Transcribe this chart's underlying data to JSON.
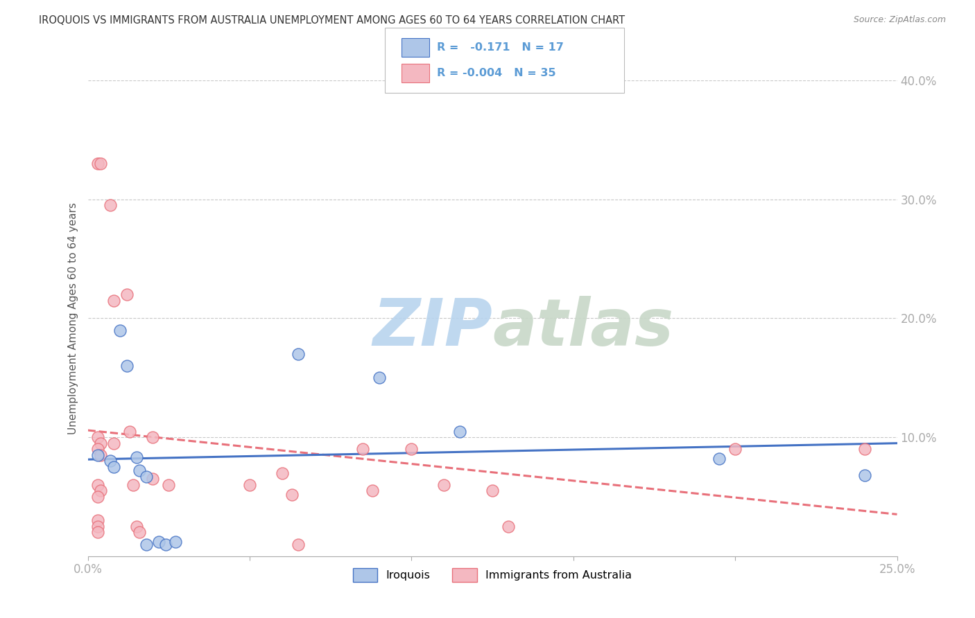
{
  "title": "IROQUOIS VS IMMIGRANTS FROM AUSTRALIA UNEMPLOYMENT AMONG AGES 60 TO 64 YEARS CORRELATION CHART",
  "source": "Source: ZipAtlas.com",
  "ylabel": "Unemployment Among Ages 60 to 64 years",
  "xlim": [
    0.0,
    0.25
  ],
  "ylim": [
    0.0,
    0.4
  ],
  "xticks": [
    0.0,
    0.05,
    0.1,
    0.15,
    0.2,
    0.25
  ],
  "yticks": [
    0.0,
    0.1,
    0.2,
    0.3,
    0.4
  ],
  "xtick_labels": [
    "0.0%",
    "",
    "",
    "",
    "",
    "25.0%"
  ],
  "ytick_labels": [
    "",
    "10.0%",
    "20.0%",
    "30.0%",
    "40.0%"
  ],
  "background_color": "#ffffff",
  "grid_color": "#c8c8c8",
  "axis_color": "#5b9bd5",
  "iroquois_color": "#aec6e8",
  "immigrants_color": "#f4b8c1",
  "iroquois_line_color": "#4472c4",
  "immigrants_line_color": "#e8707a",
  "R_iroquois": -0.171,
  "N_iroquois": 17,
  "R_immigrants": -0.004,
  "N_immigrants": 35,
  "iroquois_points": [
    [
      0.003,
      0.085
    ],
    [
      0.007,
      0.08
    ],
    [
      0.008,
      0.075
    ],
    [
      0.01,
      0.19
    ],
    [
      0.012,
      0.16
    ],
    [
      0.015,
      0.083
    ],
    [
      0.016,
      0.072
    ],
    [
      0.018,
      0.067
    ],
    [
      0.018,
      0.01
    ],
    [
      0.022,
      0.012
    ],
    [
      0.024,
      0.01
    ],
    [
      0.027,
      0.012
    ],
    [
      0.065,
      0.17
    ],
    [
      0.09,
      0.15
    ],
    [
      0.115,
      0.105
    ],
    [
      0.195,
      0.082
    ],
    [
      0.24,
      0.068
    ]
  ],
  "immigrants_points": [
    [
      0.003,
      0.33
    ],
    [
      0.004,
      0.33
    ],
    [
      0.003,
      0.1
    ],
    [
      0.004,
      0.095
    ],
    [
      0.003,
      0.09
    ],
    [
      0.004,
      0.085
    ],
    [
      0.003,
      0.06
    ],
    [
      0.004,
      0.055
    ],
    [
      0.003,
      0.05
    ],
    [
      0.003,
      0.03
    ],
    [
      0.003,
      0.025
    ],
    [
      0.003,
      0.02
    ],
    [
      0.007,
      0.295
    ],
    [
      0.008,
      0.215
    ],
    [
      0.008,
      0.095
    ],
    [
      0.012,
      0.22
    ],
    [
      0.013,
      0.105
    ],
    [
      0.014,
      0.06
    ],
    [
      0.015,
      0.025
    ],
    [
      0.016,
      0.02
    ],
    [
      0.02,
      0.1
    ],
    [
      0.02,
      0.065
    ],
    [
      0.025,
      0.06
    ],
    [
      0.05,
      0.06
    ],
    [
      0.06,
      0.07
    ],
    [
      0.063,
      0.052
    ],
    [
      0.065,
      0.01
    ],
    [
      0.085,
      0.09
    ],
    [
      0.088,
      0.055
    ],
    [
      0.1,
      0.09
    ],
    [
      0.11,
      0.06
    ],
    [
      0.125,
      0.055
    ],
    [
      0.13,
      0.025
    ],
    [
      0.2,
      0.09
    ],
    [
      0.24,
      0.09
    ]
  ]
}
